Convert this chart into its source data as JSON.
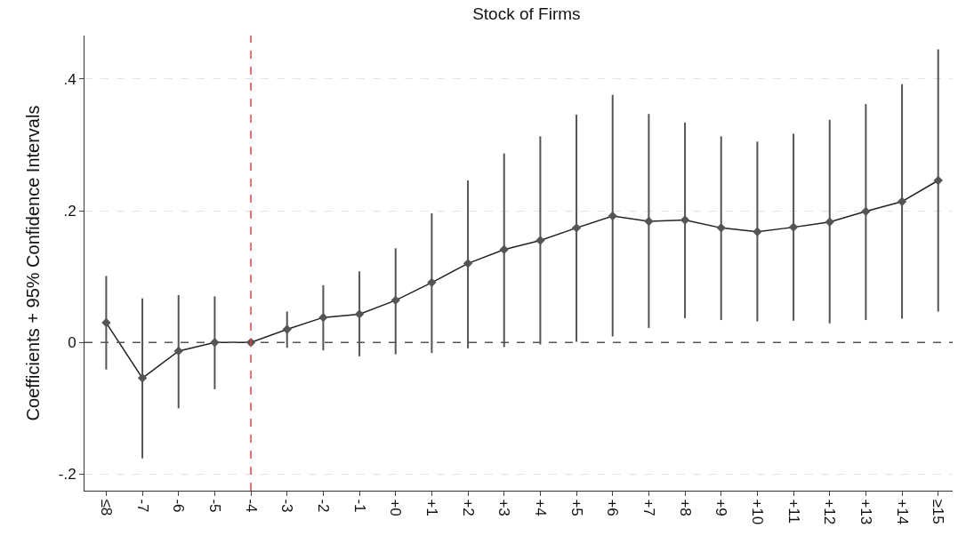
{
  "chart_data": {
    "type": "line",
    "title": "Stock of Firms",
    "ylabel": "Coefficients + 95% Confidence Intervals",
    "categories": [
      "≤8",
      "-7",
      "-6",
      "-5",
      "-4",
      "-3",
      "-2",
      "-1",
      "+0",
      "+1",
      "+2",
      "+3",
      "+4",
      "+5",
      "+6",
      "+7",
      "+8",
      "+9",
      "+10",
      "+11",
      "+12",
      "+13",
      "+14",
      "≥15"
    ],
    "series": [
      {
        "color": "#555555",
        "values": [
          0.03,
          -0.054,
          -0.013,
          0.0,
          0.0,
          0.02,
          0.038,
          0.043,
          0.064,
          0.091,
          0.12,
          0.141,
          0.155,
          0.174,
          0.192,
          0.184,
          0.186,
          0.174,
          0.168,
          0.175,
          0.183,
          0.199,
          0.214,
          0.246
        ],
        "errors": [
          [
            -0.041,
            0.101
          ],
          [
            -0.176,
            0.067
          ],
          [
            -0.1,
            0.072
          ],
          [
            -0.071,
            0.07
          ],
          null,
          [
            -0.008,
            0.047
          ],
          [
            -0.012,
            0.087
          ],
          [
            -0.021,
            0.108
          ],
          [
            -0.018,
            0.143
          ],
          [
            -0.016,
            0.196
          ],
          [
            -0.009,
            0.246
          ],
          [
            -0.007,
            0.287
          ],
          [
            -0.003,
            0.313
          ],
          [
            0.001,
            0.346
          ],
          [
            0.009,
            0.376
          ],
          [
            0.022,
            0.347
          ],
          [
            0.037,
            0.334
          ],
          [
            0.034,
            0.313
          ],
          [
            0.032,
            0.305
          ],
          [
            0.033,
            0.317
          ],
          [
            0.029,
            0.338
          ],
          [
            0.034,
            0.362
          ],
          [
            0.036,
            0.392
          ],
          [
            0.047,
            0.445
          ]
        ]
      }
    ],
    "ylim": [
      -0.225,
      0.466
    ],
    "yticks": [
      {
        "value": -0.2,
        "label": "-.2"
      },
      {
        "value": 0,
        "label": "0"
      },
      {
        "value": 0.2,
        "label": ".2"
      },
      {
        "value": 0.4,
        "label": ".4"
      }
    ],
    "ref_lines": [
      {
        "axis": "y",
        "value": 0,
        "color": "#555555",
        "line_style": "dashed"
      },
      {
        "axis": "x",
        "value": "-4",
        "color": "#e8404a",
        "line_style": "dashed"
      }
    ],
    "grid": "y",
    "marker": "diamond",
    "line_style": "solid",
    "legend": false
  }
}
